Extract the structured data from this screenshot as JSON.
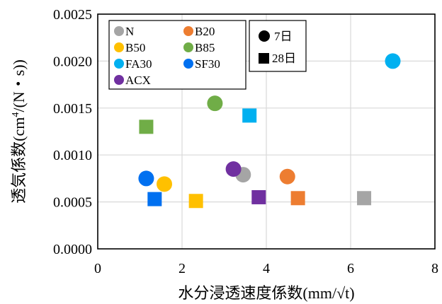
{
  "chart_data": {
    "type": "scatter",
    "title": "",
    "xlabel": "水分浸透速度係数(mm/√t)",
    "ylabel": "透気係数(cm⁴/(N・s))",
    "ylabel_parts": {
      "pre": "透気係数(cm",
      "sup": "4",
      "post": "/(N・s))"
    },
    "xlim": [
      0,
      8
    ],
    "ylim": [
      0,
      0.0025
    ],
    "x_ticks": [
      {
        "value": 0,
        "label": "0"
      },
      {
        "value": 2,
        "label": "2"
      },
      {
        "value": 4,
        "label": "4"
      },
      {
        "value": 6,
        "label": "6"
      },
      {
        "value": 8,
        "label": "8"
      }
    ],
    "y_ticks": [
      {
        "value": 0,
        "label": "0.0000"
      },
      {
        "value": 0.0005,
        "label": "0.0005"
      },
      {
        "value": 0.001,
        "label": "0.0010"
      },
      {
        "value": 0.0015,
        "label": "0.0015"
      },
      {
        "value": 0.002,
        "label": "0.0020"
      },
      {
        "value": 0.0025,
        "label": "0.0025"
      }
    ],
    "grid": true,
    "series": [
      {
        "name": "N",
        "color": "#a5a5a5",
        "points": [
          {
            "x": 3.45,
            "y": 0.00079,
            "age": "7d"
          },
          {
            "x": 6.32,
            "y": 0.00054,
            "age": "28d"
          }
        ]
      },
      {
        "name": "B20",
        "color": "#ed7d31",
        "points": [
          {
            "x": 4.5,
            "y": 0.00077,
            "age": "7d"
          },
          {
            "x": 4.75,
            "y": 0.00054,
            "age": "28d"
          }
        ]
      },
      {
        "name": "B50",
        "color": "#ffc000",
        "points": [
          {
            "x": 1.58,
            "y": 0.00069,
            "age": "7d"
          },
          {
            "x": 2.33,
            "y": 0.00051,
            "age": "28d"
          }
        ]
      },
      {
        "name": "B85",
        "color": "#70ad47",
        "points": [
          {
            "x": 2.78,
            "y": 0.00155,
            "age": "7d"
          },
          {
            "x": 1.15,
            "y": 0.0013,
            "age": "28d"
          }
        ]
      },
      {
        "name": "FA30",
        "color": "#00b0f0",
        "points": [
          {
            "x": 7.0,
            "y": 0.002,
            "age": "7d"
          },
          {
            "x": 3.6,
            "y": 0.00142,
            "age": "28d"
          }
        ]
      },
      {
        "name": "SF30",
        "color": "#0070f0",
        "points": [
          {
            "x": 1.15,
            "y": 0.00075,
            "age": "7d"
          },
          {
            "x": 1.35,
            "y": 0.00053,
            "age": "28d"
          }
        ]
      },
      {
        "name": "ACX",
        "color": "#7030a0",
        "points": [
          {
            "x": 3.22,
            "y": 0.00085,
            "age": "7d"
          },
          {
            "x": 3.82,
            "y": 0.00055,
            "age": "28d"
          }
        ]
      }
    ],
    "marker_legend": [
      {
        "age": "7d",
        "label": "7日",
        "shape": "circle"
      },
      {
        "age": "28d",
        "label": "28日",
        "shape": "square"
      }
    ],
    "legend_placement": "top-left"
  }
}
